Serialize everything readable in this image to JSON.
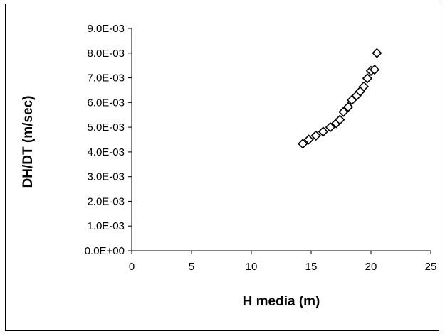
{
  "chart_data": {
    "type": "scatter",
    "title": "",
    "xlabel": "H media (m)",
    "ylabel": "DH/DT (m/sec)",
    "xlim": [
      0,
      25
    ],
    "ylim": [
      0,
      0.009
    ],
    "x_ticks": [
      0,
      5,
      10,
      15,
      20,
      25
    ],
    "x_tick_labels": [
      "0",
      "5",
      "10",
      "15",
      "20",
      "25"
    ],
    "y_ticks": [
      0,
      0.001,
      0.002,
      0.003,
      0.004,
      0.005,
      0.006,
      0.007,
      0.008,
      0.009
    ],
    "y_tick_labels": [
      "0.0E+00",
      "1.0E-03",
      "2.0E-03",
      "3.0E-03",
      "4.0E-03",
      "5.0E-03",
      "6.0E-03",
      "7.0E-03",
      "8.0E-03",
      "9.0E-03"
    ],
    "grid": false,
    "legend": "none",
    "marker": "open-diamond",
    "marker_color": "#000000",
    "series": [
      {
        "points": [
          {
            "x": 14.3,
            "y": 0.00433
          },
          {
            "x": 14.8,
            "y": 0.0045
          },
          {
            "x": 15.4,
            "y": 0.00466
          },
          {
            "x": 16.0,
            "y": 0.00482
          },
          {
            "x": 16.6,
            "y": 0.005
          },
          {
            "x": 17.1,
            "y": 0.00516
          },
          {
            "x": 17.4,
            "y": 0.0053
          },
          {
            "x": 17.7,
            "y": 0.00562
          },
          {
            "x": 18.1,
            "y": 0.00582
          },
          {
            "x": 18.4,
            "y": 0.0061
          },
          {
            "x": 18.8,
            "y": 0.00628
          },
          {
            "x": 19.1,
            "y": 0.00645
          },
          {
            "x": 19.4,
            "y": 0.00665
          },
          {
            "x": 19.7,
            "y": 0.00698
          },
          {
            "x": 20.0,
            "y": 0.00728
          },
          {
            "x": 20.3,
            "y": 0.00733
          },
          {
            "x": 20.5,
            "y": 0.008
          }
        ]
      }
    ]
  }
}
